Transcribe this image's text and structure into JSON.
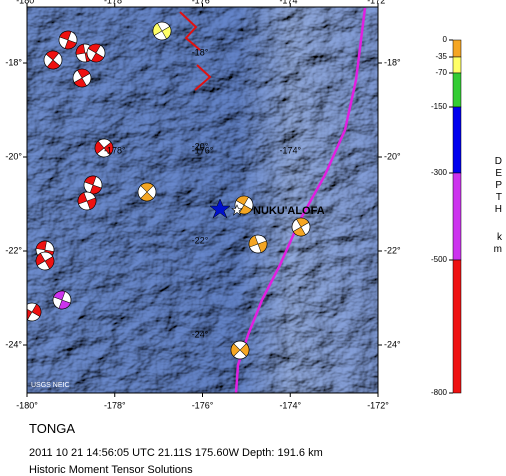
{
  "map": {
    "lon_ticks": [
      {
        "value": -180,
        "label": "-180°"
      },
      {
        "value": -178,
        "label": "-178°"
      },
      {
        "value": -176,
        "label": "-176°"
      },
      {
        "value": -174,
        "label": "-174°"
      },
      {
        "value": -172,
        "label": "-172°"
      }
    ],
    "lat_ticks": [
      {
        "value": -18,
        "label": "-18°"
      },
      {
        "value": -20,
        "label": "-20°"
      },
      {
        "value": -22,
        "label": "-22°"
      },
      {
        "value": -24,
        "label": "-24°"
      }
    ],
    "credit": "USGS NEIC",
    "city": "NUKU'ALOFA"
  },
  "depth_scale": {
    "title": "DEPTH",
    "unit": "km",
    "ticks": [
      0,
      -35,
      -70,
      -150,
      -300,
      -500,
      -800
    ],
    "colors": [
      "#f5a623",
      "#ffff66",
      "#33cc33",
      "#0000ee",
      "#cc33ee",
      "#ee1111"
    ]
  },
  "caption": {
    "region": "TONGA",
    "event": "2011 10 21 14:56:05 UTC 21.11S 175.60W Depth: 191.6 km",
    "note": "Historic Moment Tensor Solutions"
  }
}
